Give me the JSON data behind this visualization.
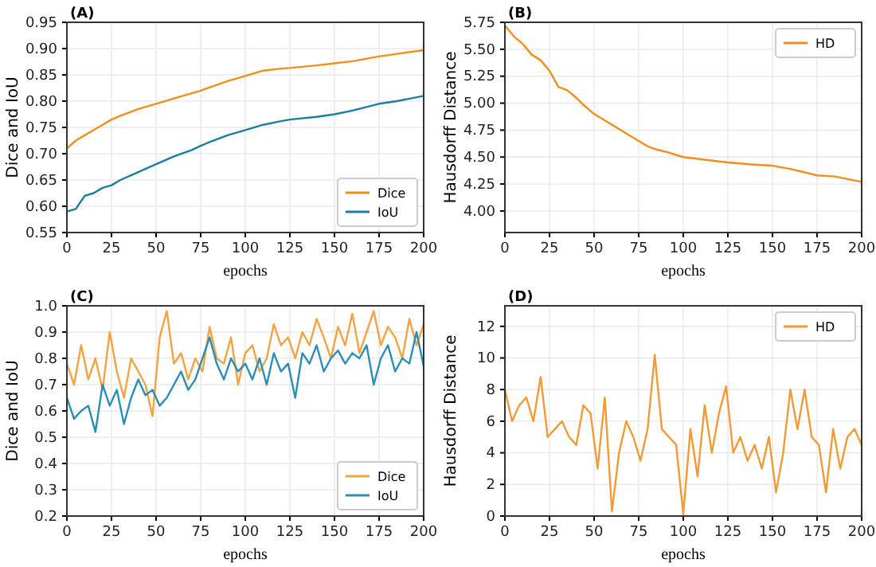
{
  "chart_data": [
    {
      "type": "line",
      "title": "(A)",
      "xlabel": "epochs",
      "ylabel": "Dice and IoU",
      "xlim": [
        0,
        200
      ],
      "xticks": [
        0,
        25,
        50,
        75,
        100,
        125,
        150,
        175,
        200
      ],
      "ylim": [
        0.55,
        0.95
      ],
      "yticks": [
        {
          "value": 0.55,
          "label": "0.55"
        },
        {
          "value": 0.6,
          "label": "0.60"
        },
        {
          "value": 0.65,
          "label": "0.65"
        },
        {
          "value": 0.7,
          "label": "0.70"
        },
        {
          "value": 0.75,
          "label": "0.75"
        },
        {
          "value": 0.8,
          "label": "0.80"
        },
        {
          "value": 0.85,
          "label": "0.85"
        },
        {
          "value": 0.9,
          "label": "0.90"
        },
        {
          "value": 0.95,
          "label": "0.95"
        }
      ],
      "grid": true,
      "legend": "bottom right",
      "x": [
        0,
        5,
        10,
        15,
        20,
        25,
        30,
        40,
        50,
        60,
        70,
        75,
        80,
        90,
        100,
        110,
        120,
        125,
        140,
        150,
        160,
        175,
        185,
        200
      ],
      "series": [
        {
          "name": "Dice",
          "color": "#f28e1c",
          "values": [
            0.71,
            0.725,
            0.735,
            0.745,
            0.755,
            0.765,
            0.772,
            0.785,
            0.795,
            0.805,
            0.815,
            0.82,
            0.826,
            0.838,
            0.848,
            0.858,
            0.862,
            0.863,
            0.868,
            0.872,
            0.876,
            0.885,
            0.89,
            0.897
          ]
        },
        {
          "name": "IoU",
          "color": "#1a7fa0",
          "values": [
            0.59,
            0.595,
            0.62,
            0.625,
            0.635,
            0.64,
            0.65,
            0.665,
            0.68,
            0.695,
            0.707,
            0.715,
            0.722,
            0.735,
            0.745,
            0.755,
            0.762,
            0.765,
            0.77,
            0.775,
            0.782,
            0.795,
            0.8,
            0.81
          ]
        }
      ]
    },
    {
      "type": "line",
      "title": "(B)",
      "xlabel": "epochs",
      "ylabel": "Hausdorff Distance",
      "xlim": [
        0,
        200
      ],
      "xticks": [
        0,
        25,
        50,
        75,
        100,
        125,
        150,
        175,
        200
      ],
      "ylim": [
        3.8,
        5.75
      ],
      "yticks": [
        {
          "value": 4.0,
          "label": "4.00"
        },
        {
          "value": 4.25,
          "label": "4.25"
        },
        {
          "value": 4.5,
          "label": "4.50"
        },
        {
          "value": 4.75,
          "label": "4.75"
        },
        {
          "value": 5.0,
          "label": "5.00"
        },
        {
          "value": 5.25,
          "label": "5.25"
        },
        {
          "value": 5.5,
          "label": "5.50"
        },
        {
          "value": 5.75,
          "label": "5.75"
        }
      ],
      "grid": true,
      "legend": "top right",
      "x": [
        0,
        5,
        10,
        15,
        20,
        25,
        30,
        35,
        40,
        45,
        50,
        60,
        70,
        75,
        80,
        85,
        90,
        100,
        110,
        125,
        140,
        150,
        160,
        175,
        185,
        200
      ],
      "series": [
        {
          "name": "HD",
          "color": "#f28e1c",
          "values": [
            5.72,
            5.62,
            5.55,
            5.45,
            5.4,
            5.3,
            5.15,
            5.12,
            5.05,
            4.97,
            4.9,
            4.8,
            4.7,
            4.65,
            4.6,
            4.57,
            4.55,
            4.5,
            4.48,
            4.45,
            4.43,
            4.42,
            4.39,
            4.33,
            4.32,
            4.27
          ]
        }
      ]
    },
    {
      "type": "line",
      "title": "(C)",
      "xlabel": "epochs",
      "ylabel": "Dice and IoU",
      "xlim": [
        0,
        200
      ],
      "xticks": [
        0,
        25,
        50,
        75,
        100,
        125,
        150,
        175,
        200
      ],
      "ylim": [
        0.2,
        1.0
      ],
      "yticks": [
        {
          "value": 0.2,
          "label": "0.2"
        },
        {
          "value": 0.3,
          "label": "0.3"
        },
        {
          "value": 0.4,
          "label": "0.4"
        },
        {
          "value": 0.5,
          "label": "0.5"
        },
        {
          "value": 0.6,
          "label": "0.6"
        },
        {
          "value": 0.7,
          "label": "0.7"
        },
        {
          "value": 0.8,
          "label": "0.8"
        },
        {
          "value": 0.9,
          "label": "0.9"
        },
        {
          "value": 1.0,
          "label": "1.0"
        }
      ],
      "grid": true,
      "legend": "bottom right",
      "x": [
        0,
        4,
        8,
        12,
        16,
        20,
        24,
        28,
        32,
        36,
        40,
        44,
        48,
        52,
        56,
        60,
        64,
        68,
        72,
        76,
        80,
        84,
        88,
        92,
        96,
        100,
        104,
        108,
        112,
        116,
        120,
        124,
        128,
        132,
        136,
        140,
        144,
        148,
        152,
        156,
        160,
        164,
        168,
        172,
        176,
        180,
        184,
        188,
        192,
        196,
        200
      ],
      "series": [
        {
          "name": "Dice",
          "color": "#f4a340",
          "values": [
            0.78,
            0.7,
            0.85,
            0.72,
            0.8,
            0.68,
            0.9,
            0.75,
            0.65,
            0.8,
            0.75,
            0.7,
            0.58,
            0.88,
            0.98,
            0.78,
            0.82,
            0.72,
            0.8,
            0.75,
            0.92,
            0.8,
            0.78,
            0.88,
            0.7,
            0.82,
            0.85,
            0.75,
            0.8,
            0.93,
            0.85,
            0.88,
            0.8,
            0.9,
            0.85,
            0.95,
            0.88,
            0.8,
            0.92,
            0.85,
            0.97,
            0.82,
            0.9,
            0.98,
            0.85,
            0.92,
            0.88,
            0.8,
            0.95,
            0.85,
            0.93
          ]
        },
        {
          "name": "IoU",
          "color": "#2a8fb8",
          "values": [
            0.65,
            0.57,
            0.6,
            0.62,
            0.52,
            0.7,
            0.62,
            0.68,
            0.55,
            0.65,
            0.72,
            0.66,
            0.68,
            0.62,
            0.65,
            0.7,
            0.75,
            0.68,
            0.72,
            0.8,
            0.88,
            0.78,
            0.72,
            0.8,
            0.75,
            0.78,
            0.72,
            0.8,
            0.7,
            0.82,
            0.75,
            0.78,
            0.65,
            0.82,
            0.78,
            0.85,
            0.75,
            0.8,
            0.83,
            0.78,
            0.82,
            0.8,
            0.85,
            0.7,
            0.8,
            0.85,
            0.75,
            0.8,
            0.78,
            0.9,
            0.77
          ]
        }
      ]
    },
    {
      "type": "line",
      "title": "(D)",
      "xlabel": "epochs",
      "ylabel": "Hausdorff Distance",
      "xlim": [
        0,
        200
      ],
      "xticks": [
        0,
        25,
        50,
        75,
        100,
        125,
        150,
        175,
        200
      ],
      "ylim": [
        0,
        13.3
      ],
      "yticks": [
        0,
        2,
        4,
        6,
        8,
        10,
        12
      ],
      "grid": true,
      "legend": "top right",
      "x": [
        0,
        4,
        8,
        12,
        16,
        20,
        24,
        28,
        32,
        36,
        40,
        44,
        48,
        52,
        56,
        60,
        64,
        68,
        72,
        76,
        80,
        84,
        88,
        92,
        96,
        100,
        104,
        108,
        112,
        116,
        120,
        124,
        128,
        132,
        136,
        140,
        144,
        148,
        152,
        156,
        160,
        164,
        168,
        172,
        176,
        180,
        184,
        188,
        192,
        196,
        200
      ],
      "series": [
        {
          "name": "HD",
          "color": "#f39a35",
          "values": [
            8.0,
            6.0,
            7.0,
            7.5,
            6.0,
            8.8,
            5.0,
            5.5,
            6.0,
            5.0,
            4.5,
            7.0,
            6.5,
            3.0,
            7.5,
            0.3,
            4.0,
            6.0,
            5.0,
            3.5,
            5.5,
            10.2,
            5.5,
            5.0,
            4.5,
            0.1,
            5.5,
            2.5,
            7.0,
            4.0,
            6.5,
            8.2,
            4.0,
            5.0,
            3.5,
            4.5,
            3.0,
            5.0,
            1.5,
            4.0,
            8.0,
            5.5,
            8.0,
            5.0,
            4.5,
            1.5,
            5.5,
            3.0,
            5.0,
            5.5,
            4.5
          ]
        }
      ]
    }
  ]
}
